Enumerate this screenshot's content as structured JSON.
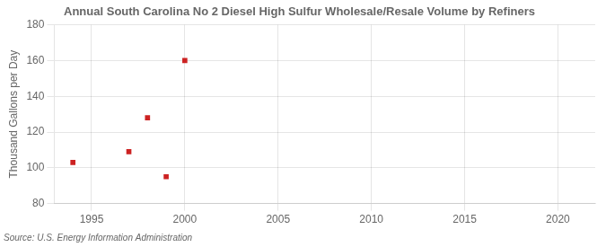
{
  "chart_data": {
    "type": "scatter",
    "title": "Annual South Carolina No 2 Diesel High Sulfur Wholesale/Resale Volume by Refiners",
    "ylabel": "Thousand Gallons per Day",
    "source": "Source: U.S. Energy Information Administration",
    "x": [
      1994,
      1997,
      1998,
      1999,
      2000
    ],
    "values": [
      103,
      109,
      128,
      95,
      160
    ],
    "xlim": [
      1993,
      2022
    ],
    "ylim": [
      80,
      180
    ],
    "xticks": [
      1995,
      2000,
      2005,
      2010,
      2015,
      2020
    ],
    "yticks": [
      80,
      100,
      120,
      140,
      160,
      180
    ],
    "color": "#cc2222",
    "marker": "square",
    "grid": true
  }
}
